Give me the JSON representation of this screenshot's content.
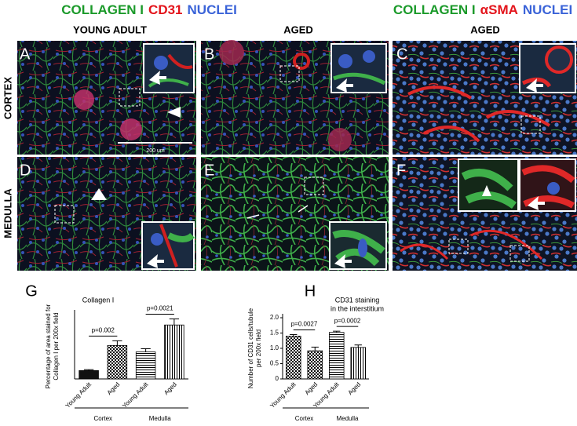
{
  "headers": [
    {
      "parts": [
        {
          "text": "COLLAGEN I",
          "color": "#1b9a2a"
        },
        {
          "text": "CD31",
          "color": "#e3141b"
        },
        {
          "text": "NUCLEI",
          "color": "#3a63d8"
        }
      ]
    },
    {
      "parts": [
        {
          "text": "COLLAGEN I",
          "color": "#1b9a2a"
        },
        {
          "text": "αSMA",
          "color": "#e3141b"
        },
        {
          "text": "NUCLEI",
          "color": "#3a63d8"
        }
      ]
    }
  ],
  "column_labels": [
    "YOUNG ADULT",
    "AGED",
    "AGED"
  ],
  "row_labels": [
    "CORTEX",
    "MEDULLA"
  ],
  "panels": [
    "A",
    "B",
    "C",
    "D",
    "E",
    "F"
  ],
  "scale_bar": "200 um",
  "chart_data": [
    {
      "type": "bar",
      "panel": "G",
      "title": [
        "Collagen I"
      ],
      "ylabel": [
        "Percentage of area stained for",
        "Collagen I per 200x field"
      ],
      "categories": [
        "Young Adult",
        "Aged",
        "Young Adult",
        "Aged"
      ],
      "values": [
        0.9,
        3.6,
        2.9,
        5.8
      ],
      "errors": [
        0.1,
        0.5,
        0.35,
        0.65
      ],
      "patterns": [
        "solid",
        "checker",
        "hlines",
        "vlines"
      ],
      "groups": [
        "Cortex",
        "Medulla"
      ],
      "annotations": [
        "p=0.002",
        "p=0.0021"
      ],
      "ylim": [
        0,
        7
      ]
    },
    {
      "type": "bar",
      "panel": "H",
      "title": [
        "CD31 staining",
        "in the interstitium"
      ],
      "ylabel": [
        "Number of CD31 cells/tubule",
        "per 200x field"
      ],
      "categories": [
        "Young Adult",
        "Aged",
        "Young Adult",
        "Aged"
      ],
      "values": [
        1.4,
        0.92,
        1.52,
        1.03
      ],
      "errors": [
        0.05,
        0.12,
        0.04,
        0.08
      ],
      "patterns": [
        "checker",
        "checker",
        "hlines",
        "vlines"
      ],
      "groups": [
        "Cortex",
        "Medulla"
      ],
      "annotations": [
        "p=0.0027",
        "p=0.0002"
      ],
      "ylim": [
        0,
        2
      ],
      "yticks": [
        0,
        0.5,
        {
          "value": 1,
          "label": "1.0"
        },
        1.5,
        {
          "value": 2,
          "label": "2.0"
        }
      ]
    }
  ]
}
